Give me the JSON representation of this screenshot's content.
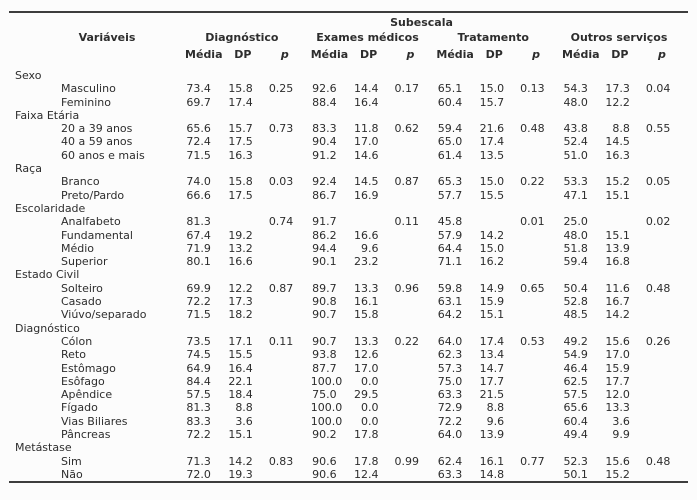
{
  "table": {
    "title": "Subescala",
    "variables_header": "Variáveis",
    "groups": [
      {
        "label": "Diagnóstico"
      },
      {
        "label": "Exames médicos"
      },
      {
        "label": "Tratamento"
      },
      {
        "label": "Outros serviços"
      }
    ],
    "subheaders": [
      "Média",
      "DP",
      "p"
    ],
    "sections": [
      {
        "label": "Sexo",
        "rows": [
          {
            "label": "Masculino",
            "values": [
              "73.4",
              "15.8",
              "0.25",
              "92.6",
              "14.4",
              "0.17",
              "65.1",
              "15.0",
              "0.13",
              "54.3",
              "17.3",
              "0.04"
            ]
          },
          {
            "label": "Feminino",
            "values": [
              "69.7",
              "17.4",
              "",
              "88.4",
              "16.4",
              "",
              "60.4",
              "15.7",
              "",
              "48.0",
              "12.2",
              ""
            ]
          }
        ]
      },
      {
        "label": "Faixa Etária",
        "rows": [
          {
            "label": "20 a 39 anos",
            "values": [
              "65.6",
              "15.7",
              "0.73",
              "83.3",
              "11.8",
              "0.62",
              "59.4",
              "21.6",
              "0.48",
              "43.8",
              "8.8",
              "0.55"
            ]
          },
          {
            "label": "40 a 59 anos",
            "values": [
              "72.4",
              "17.5",
              "",
              "90.4",
              "17.0",
              "",
              "65.0",
              "17.4",
              "",
              "52.4",
              "14.5",
              ""
            ]
          },
          {
            "label": "60 anos e mais",
            "values": [
              "71.5",
              "16.3",
              "",
              "91.2",
              "14.6",
              "",
              "61.4",
              "13.5",
              "",
              "51.0",
              "16.3",
              ""
            ]
          }
        ]
      },
      {
        "label": "Raça",
        "rows": [
          {
            "label": "Branco",
            "values": [
              "74.0",
              "15.8",
              "0.03",
              "92.4",
              "14.5",
              "0.87",
              "65.3",
              "15.0",
              "0.22",
              "53.3",
              "15.2",
              "0.05"
            ]
          },
          {
            "label": "Preto/Pardo",
            "values": [
              "66.6",
              "17.5",
              "",
              "86.7",
              "16.9",
              "",
              "57.7",
              "15.5",
              "",
              "47.1",
              "15.1",
              ""
            ]
          }
        ]
      },
      {
        "label": "Escolaridade",
        "rows": [
          {
            "label": "Analfabeto",
            "values": [
              "81.3",
              "",
              "0.74",
              "91.7",
              "",
              "0.11",
              "45.8",
              "",
              "0.01",
              "25.0",
              "",
              "0.02"
            ]
          },
          {
            "label": "Fundamental",
            "values": [
              "67.4",
              "19.2",
              "",
              "86.2",
              "16.6",
              "",
              "57.9",
              "14.2",
              "",
              "48.0",
              "15.1",
              ""
            ]
          },
          {
            "label": "Médio",
            "values": [
              "71.9",
              "13.2",
              "",
              "94.4",
              "9.6",
              "",
              "64.4",
              "15.0",
              "",
              "51.8",
              "13.9",
              ""
            ]
          },
          {
            "label": "Superior",
            "values": [
              "80.1",
              "16.6",
              "",
              "90.1",
              "23.2",
              "",
              "71.1",
              "16.2",
              "",
              "59.4",
              "16.8",
              ""
            ]
          }
        ]
      },
      {
        "label": "Estado Civil",
        "rows": [
          {
            "label": "Solteiro",
            "values": [
              "69.9",
              "12.2",
              "0.87",
              "89.7",
              "13.3",
              "0.96",
              "59.8",
              "14.9",
              "0.65",
              "50.4",
              "11.6",
              "0.48"
            ]
          },
          {
            "label": "Casado",
            "values": [
              "72.2",
              "17.3",
              "",
              "90.8",
              "16.1",
              "",
              "63.1",
              "15.9",
              "",
              "52.8",
              "16.7",
              ""
            ]
          },
          {
            "label": "Viúvo/separado",
            "values": [
              "71.5",
              "18.2",
              "",
              "90.7",
              "15.8",
              "",
              "64.2",
              "15.1",
              "",
              "48.5",
              "14.2",
              ""
            ]
          }
        ]
      },
      {
        "label": "Diagnóstico",
        "rows": [
          {
            "label": "Cólon",
            "values": [
              "73.5",
              "17.1",
              "0.11",
              "90.7",
              "13.3",
              "0.22",
              "64.0",
              "17.4",
              "0.53",
              "49.2",
              "15.6",
              "0.26"
            ]
          },
          {
            "label": "Reto",
            "values": [
              "74.5",
              "15.5",
              "",
              "93.8",
              "12.6",
              "",
              "62.3",
              "13.4",
              "",
              "54.9",
              "17.0",
              ""
            ]
          },
          {
            "label": "Estômago",
            "values": [
              "64.9",
              "16.4",
              "",
              "87.7",
              "17.0",
              "",
              "57.3",
              "14.7",
              "",
              "46.4",
              "15.9",
              ""
            ]
          },
          {
            "label": "Esôfago",
            "values": [
              "84.4",
              "22.1",
              "",
              "100.0",
              "0.0",
              "",
              "75.0",
              "17.7",
              "",
              "62.5",
              "17.7",
              ""
            ]
          },
          {
            "label": "Apêndice",
            "values": [
              "57.5",
              "18.4",
              "",
              "75.0",
              "29.5",
              "",
              "63.3",
              "21.5",
              "",
              "57.5",
              "12.0",
              ""
            ]
          },
          {
            "label": "Fígado",
            "values": [
              "81.3",
              "8.8",
              "",
              "100.0",
              "0.0",
              "",
              "72.9",
              "8.8",
              "",
              "65.6",
              "13.3",
              ""
            ]
          },
          {
            "label": "Vias Biliares",
            "values": [
              "83.3",
              "3.6",
              "",
              "100.0",
              "0.0",
              "",
              "72.2",
              "9.6",
              "",
              "60.4",
              "3.6",
              ""
            ]
          },
          {
            "label": "Pâncreas",
            "values": [
              "72.2",
              "15.1",
              "",
              "90.2",
              "17.8",
              "",
              "64.0",
              "13.9",
              "",
              "49.4",
              "9.9",
              ""
            ]
          }
        ]
      },
      {
        "label": "Metástase",
        "rows": [
          {
            "label": "Sim",
            "values": [
              "71.3",
              "14.2",
              "0.83",
              "90.6",
              "17.8",
              "0.99",
              "62.4",
              "16.1",
              "0.77",
              "52.3",
              "15.6",
              "0.48"
            ]
          },
          {
            "label": "Não",
            "values": [
              "72.0",
              "19.3",
              "",
              "90.6",
              "12.4",
              "",
              "63.3",
              "14.8",
              "",
              "50.1",
              "15.2",
              ""
            ]
          }
        ]
      }
    ]
  }
}
